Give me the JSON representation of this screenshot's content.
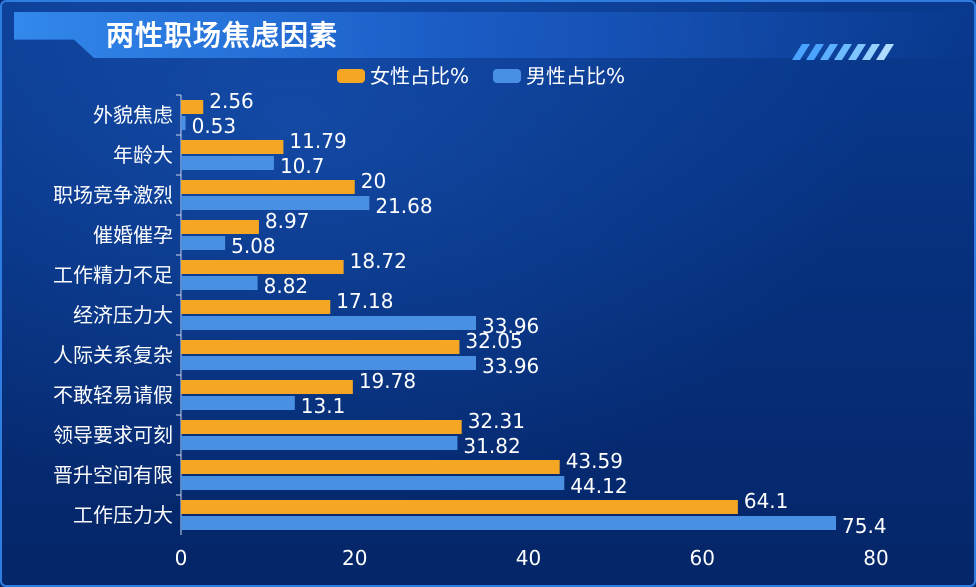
{
  "header": {
    "title": "两性职场焦虑因素"
  },
  "colors": {
    "female": "#f5a623",
    "male": "#4a90e2",
    "text": "#ffffff"
  },
  "chart_data": {
    "type": "bar",
    "orientation": "horizontal",
    "title": "两性职场焦虑因素",
    "categories": [
      "外貌焦虑",
      "年龄大",
      "职场竞争激烈",
      "催婚催孕",
      "工作精力不足",
      "经济压力大",
      "人际关系复杂",
      "不敢轻易请假",
      "领导要求可刻",
      "晋升空间有限",
      "工作压力大"
    ],
    "series": [
      {
        "name": "女性占比%",
        "values": [
          2.56,
          11.79,
          20,
          8.97,
          18.72,
          17.18,
          32.05,
          19.78,
          32.31,
          43.59,
          64.1
        ],
        "labels": [
          "2.56",
          "11.79",
          "20",
          "8.97",
          "18.72",
          "17.18",
          "32.05",
          "19.78",
          "32.31",
          "43.59",
          "64.1"
        ]
      },
      {
        "name": "男性占比%",
        "values": [
          0.53,
          10.7,
          21.68,
          5.08,
          8.82,
          33.96,
          33.96,
          13.1,
          31.82,
          44.12,
          75.4
        ],
        "labels": [
          "0.53",
          "10.7",
          "21.68",
          "5.08",
          "8.82",
          "33.96",
          "33.96",
          "13.1",
          "31.82",
          "44.12",
          "75.4"
        ]
      }
    ],
    "xlim": [
      0,
      80
    ],
    "xticks": [
      "0",
      "20",
      "40",
      "60",
      "80"
    ],
    "legend_position": "top-center",
    "grid": false
  }
}
